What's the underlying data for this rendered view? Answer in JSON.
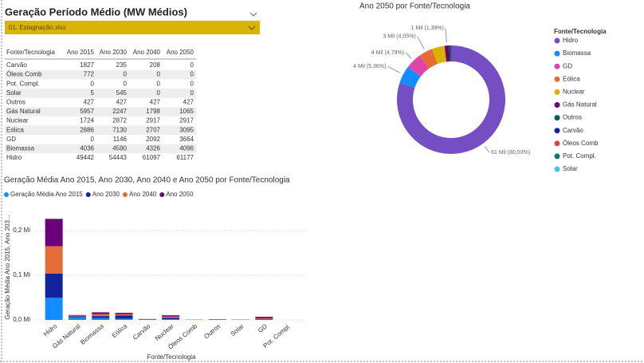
{
  "header": {
    "title": "Geração Período Médio (MW Médios)",
    "selector": "01. Estagnação.xlsx"
  },
  "table": {
    "columns": [
      "Fonte/Tecnologia",
      "Ano 2015",
      "Ano 2030",
      "Ano 2040",
      "Ano 2050"
    ],
    "rows": [
      [
        "Carvão",
        1827,
        235,
        208,
        0
      ],
      [
        "Óleos Comb",
        772,
        0,
        0,
        0
      ],
      [
        "Pot. Compl.",
        0,
        0,
        0,
        0
      ],
      [
        "Solar",
        5,
        545,
        0,
        0
      ],
      [
        "Outros",
        427,
        427,
        427,
        427
      ],
      [
        "Gás Natural",
        5957,
        2247,
        1798,
        1065
      ],
      [
        "Nuclear",
        1724,
        2872,
        2917,
        2917
      ],
      [
        "Eólica",
        2886,
        7130,
        2707,
        3095
      ],
      [
        "GD",
        0,
        1146,
        2092,
        3664
      ],
      [
        "Biomassa",
        4036,
        4590,
        4326,
        4096
      ],
      [
        "Hidro",
        49442,
        54443,
        61097,
        61177
      ]
    ]
  },
  "chart_data": [
    {
      "type": "donut",
      "title": "Ano 2050 por Fonte/Tecnologia",
      "legend_title": "Fonte/Tecnologia",
      "categories": [
        "Hidro",
        "Biomassa",
        "GD",
        "Eólica",
        "Nuclear",
        "Gás Natural",
        "Outros",
        "Carvão",
        "Óleos Comb",
        "Pot. Compl.",
        "Solar"
      ],
      "values": [
        61177,
        4096,
        3664,
        3095,
        2917,
        1065,
        427,
        0,
        0,
        0,
        0
      ],
      "value_labels": [
        "61 Mil (80,03%)",
        "4 Mil (5,36%)",
        "4 Mil (4,79%)",
        "3 Mil (4,05%)",
        null,
        "1 Mil (1,39%)",
        null,
        null,
        null,
        null,
        null
      ],
      "colors": [
        "#744ec2",
        "#118dff",
        "#e044a7",
        "#e66c37",
        "#d9b300",
        "#6b007b",
        "#0c5c5c",
        "#12239e",
        "#d64550",
        "#197278",
        "#3cc8e8"
      ]
    },
    {
      "type": "stacked-bar",
      "title": "Geração Média Ano 2015, Ano 2030, Ano 2040 e Ano 2050 por Fonte/Tecnologia",
      "y_label": "Geração Média Ano 2015, Ano 203...",
      "x_label": "Fonte/Tecnologia",
      "categories": [
        "Hidro",
        "Gás Natural",
        "Biomassa",
        "Eólica",
        "Carvão",
        "Nuclear",
        "Óleos Comb",
        "Outros",
        "Solar",
        "GD",
        "Pot. Compl."
      ],
      "series": [
        {
          "name": "Geração Média Ano 2015",
          "color": "#118dff",
          "values": [
            49442,
            5957,
            4036,
            2886,
            1827,
            1724,
            772,
            427,
            5,
            0,
            0
          ]
        },
        {
          "name": "Ano 2030",
          "color": "#12239e",
          "values": [
            54443,
            2247,
            4590,
            7130,
            235,
            2872,
            0,
            427,
            545,
            1146,
            0
          ]
        },
        {
          "name": "Ano 2040",
          "color": "#e66c37",
          "values": [
            61097,
            1798,
            4326,
            2707,
            208,
            2917,
            0,
            427,
            0,
            2092,
            0
          ]
        },
        {
          "name": "Ano 2050",
          "color": "#6b007b",
          "values": [
            61177,
            1065,
            4096,
            3095,
            0,
            2917,
            0,
            427,
            0,
            3664,
            0
          ]
        }
      ],
      "ylim": [
        0,
        250000
      ],
      "yticks": [
        {
          "value": 0,
          "label": "0,0 Mi"
        },
        {
          "value": 100000,
          "label": "0,1 Mi"
        },
        {
          "value": 200000,
          "label": "0,2 Mi"
        }
      ],
      "grid": true
    }
  ]
}
